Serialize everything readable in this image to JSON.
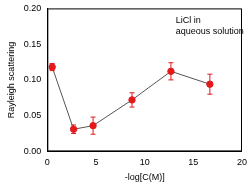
{
  "chart_data": {
    "type": "line",
    "annotation": [
      "LiCl in",
      "aqueous solution"
    ],
    "x_label": "-log[C(M)]",
    "y_label": "Rayleigh scattering",
    "x": [
      0.5,
      2.7,
      4.7,
      8.7,
      12.7,
      16.7
    ],
    "values": [
      0.118,
      0.031,
      0.036,
      0.072,
      0.112,
      0.094
    ],
    "errors": [
      0.005,
      0.006,
      0.012,
      0.01,
      0.012,
      0.014
    ],
    "color": "#e31a1c",
    "marker": "circle",
    "xlim": [
      0,
      20
    ],
    "xticks": [
      0,
      5,
      10,
      15,
      20
    ],
    "ylim": [
      0,
      0.2
    ],
    "yticks": [
      {
        "value": 0,
        "label": "0.00"
      },
      {
        "value": 0.05,
        "label": "0.05"
      },
      {
        "value": 0.1,
        "label": "0.10"
      },
      {
        "value": 0.15,
        "label": "0.15"
      },
      {
        "value": 0.2,
        "label": "0.20"
      }
    ],
    "grid": false
  }
}
